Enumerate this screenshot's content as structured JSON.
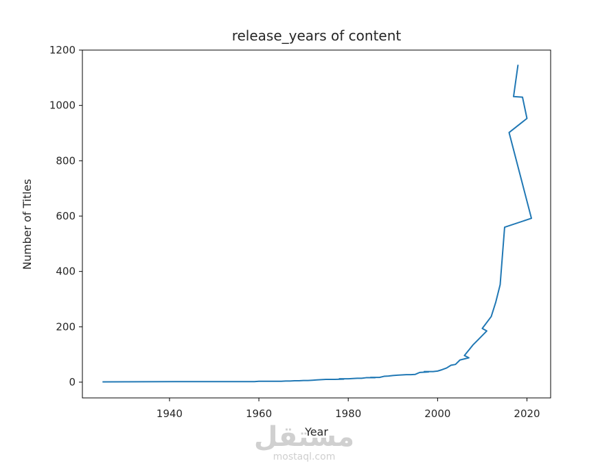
{
  "chart_data": {
    "type": "line",
    "title": "release_years of content",
    "xlabel": "Year",
    "ylabel": "Number of Titles",
    "xlim": [
      1920.5,
      2025.3
    ],
    "ylim": [
      -57,
      1200
    ],
    "xticks": [
      1940,
      1960,
      1980,
      2000,
      2020
    ],
    "yticks": [
      0,
      200,
      400,
      600,
      800,
      1000,
      1200
    ],
    "grid": false,
    "series": [
      {
        "color": "#1f77b4",
        "x": [
          2018,
          2017,
          2019,
          2020,
          2016,
          2021,
          2015,
          2014,
          2013,
          2012,
          2010,
          2011,
          2009,
          2008,
          2006,
          2007,
          2005,
          2004,
          2003,
          2002,
          2001,
          2000,
          1999,
          1997,
          1998,
          1996,
          1995,
          1994,
          1993,
          1992,
          1991,
          1990,
          1989,
          1988,
          1987,
          1985,
          1986,
          1984,
          1983,
          1982,
          1981,
          1980,
          1978,
          1979,
          1977,
          1976,
          1975,
          1974,
          1973,
          1972,
          1971,
          1970,
          1969,
          1968,
          1967,
          1966,
          1965,
          1964,
          1963,
          1962,
          1961,
          1960,
          1959,
          1958,
          1957,
          1956,
          1955,
          1954,
          1953,
          1952,
          1951,
          1950,
          1949,
          1948,
          1947,
          1946,
          1945,
          1944,
          1943,
          1942,
          1925
        ],
        "y": [
          1147,
          1032,
          1030,
          953,
          902,
          592,
          560,
          352,
          288,
          237,
          194,
          185,
          152,
          136,
          96,
          88,
          80,
          64,
          61,
          51,
          45,
          40,
          38,
          38,
          37,
          35,
          28,
          27,
          27,
          26,
          25,
          24,
          22,
          21,
          17,
          17,
          16,
          16,
          14,
          14,
          13,
          12,
          12,
          11,
          10,
          10,
          10,
          9,
          8,
          7,
          6,
          6,
          5,
          5,
          4,
          4,
          3,
          3,
          3,
          3,
          3,
          3,
          2,
          2,
          2,
          2,
          2,
          2,
          2,
          2,
          2,
          2,
          2,
          2,
          2,
          2,
          2,
          2,
          2,
          2,
          1
        ]
      }
    ]
  },
  "watermark": {
    "arabic": "مستقل",
    "latin": "mostaql.com"
  }
}
